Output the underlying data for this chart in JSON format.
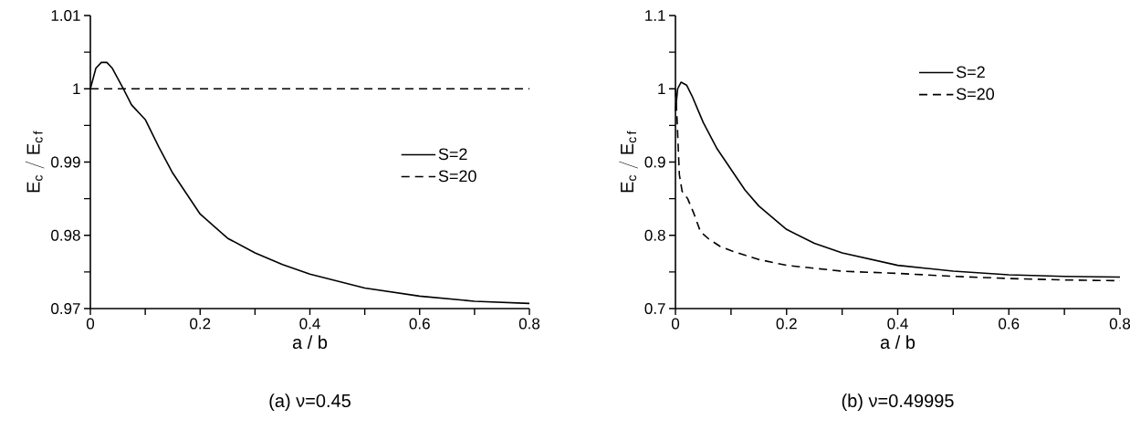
{
  "chart_data": [
    {
      "type": "line",
      "xlabel": "a / b",
      "ylabel": "\\mathrm{E_{c}\\;/\\;E_{c\\,f}}",
      "annotations": [
        "(a) ν=0.45"
      ],
      "xlim": [
        0,
        0.8
      ],
      "ylim": [
        0.97,
        1.01
      ],
      "xticks": [
        0,
        {
          "value": 0.1,
          "label": null
        },
        0.2,
        {
          "value": 0.3,
          "label": null
        },
        0.4,
        {
          "value": 0.5,
          "label": null
        },
        0.6,
        {
          "value": 0.7,
          "label": null
        },
        0.8
      ],
      "yticks": [
        0.97,
        {
          "value": 0.975,
          "label": null
        },
        0.98,
        {
          "value": 0.985,
          "label": null
        },
        0.99,
        {
          "value": 0.995,
          "label": null
        },
        1,
        {
          "value": 1.005,
          "label": null
        },
        1.01
      ],
      "grid": false,
      "legend": "right",
      "series": [
        {
          "name": "S=2",
          "color": "#000000",
          "line_style": "solid",
          "x": [
            0,
            0.01,
            0.02,
            0.03,
            0.04,
            0.05,
            0.06,
            0.075,
            0.1,
            0.125,
            0.15,
            0.2,
            0.25,
            0.3,
            0.35,
            0.4,
            0.5,
            0.6,
            0.7,
            0.8
          ],
          "values": [
            1.0,
            1.0028,
            1.0036,
            1.0036,
            1.0028,
            1.0014,
            1.0,
            0.9978,
            0.9958,
            0.992,
            0.9885,
            0.9829,
            0.9796,
            0.9776,
            0.976,
            0.9747,
            0.9728,
            0.9717,
            0.971,
            0.9707
          ]
        },
        {
          "name": "S=20",
          "color": "#000000",
          "line_style": "dashed",
          "x": [
            0,
            0.8
          ],
          "values": [
            1.0,
            1.0
          ]
        }
      ]
    },
    {
      "type": "line",
      "xlabel": "a / b",
      "ylabel": "\\mathrm{E_{c}\\;/\\;E_{c\\,f}}",
      "annotations": [
        "(b) ν=0.49995"
      ],
      "xlim": [
        0,
        0.8
      ],
      "ylim": [
        0.7,
        1.1
      ],
      "xticks": [
        0,
        {
          "value": 0.1,
          "label": null
        },
        0.2,
        {
          "value": 0.3,
          "label": null
        },
        0.4,
        {
          "value": 0.5,
          "label": null
        },
        0.6,
        {
          "value": 0.7,
          "label": null
        },
        0.8
      ],
      "yticks": [
        0.7,
        {
          "value": 0.75,
          "label": null
        },
        0.8,
        {
          "value": 0.85,
          "label": null
        },
        0.9,
        {
          "value": 0.95,
          "label": null
        },
        1,
        {
          "value": 1.05,
          "label": null
        },
        1.1
      ],
      "grid": false,
      "legend": "top right",
      "series": [
        {
          "name": "S=2",
          "color": "#000000",
          "line_style": "solid",
          "x": [
            0,
            0.004,
            0.01,
            0.02,
            0.03,
            0.05,
            0.075,
            0.1,
            0.125,
            0.15,
            0.2,
            0.25,
            0.3,
            0.4,
            0.5,
            0.6,
            0.7,
            0.8
          ],
          "values": [
            0.97,
            1.0,
            1.009,
            1.005,
            0.99,
            0.954,
            0.918,
            0.89,
            0.862,
            0.84,
            0.808,
            0.789,
            0.776,
            0.759,
            0.751,
            0.746,
            0.744,
            0.743
          ]
        },
        {
          "name": "S=20",
          "color": "#000000",
          "line_style": "dashed",
          "x": [
            0,
            0.003,
            0.007,
            0.012,
            0.022,
            0.033,
            0.045,
            0.06,
            0.08,
            0.1,
            0.15,
            0.2,
            0.3,
            0.4,
            0.5,
            0.6,
            0.7,
            0.8
          ],
          "values": [
            1.0,
            0.957,
            0.883,
            0.86,
            0.85,
            0.83,
            0.805,
            0.795,
            0.785,
            0.779,
            0.767,
            0.759,
            0.751,
            0.748,
            0.744,
            0.741,
            0.739,
            0.738
          ]
        }
      ]
    }
  ]
}
